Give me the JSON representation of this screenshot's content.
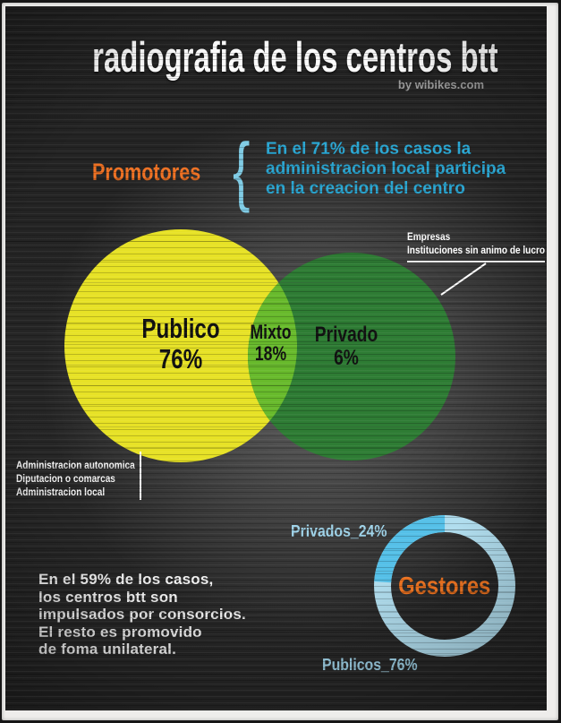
{
  "header": {
    "title": "radiografia de los centros btt",
    "byline": "by wibikes.com"
  },
  "promotores": {
    "label": "Promotores",
    "brace": "{",
    "callout": [
      "En el 71% de los casos la",
      "administracion local participa",
      "en la creacion del centro"
    ]
  },
  "venn": {
    "publico": {
      "name": "Publico",
      "value": "76%"
    },
    "mixto": {
      "name": "Mixto",
      "value": "18%"
    },
    "privado": {
      "name": "Privado",
      "value": "6%"
    },
    "privado_annotation": [
      "Empresas",
      "Instituciones sin animo de lucro"
    ],
    "publico_annotation": [
      "Administracion autonomica",
      "Diputacion o comarcas",
      "Administracion local"
    ]
  },
  "note": [
    "En el 59% de los casos,",
    "los centros btt son",
    "impulsados por consorcios.",
    "El resto es promovido",
    "de foma unilateral."
  ],
  "gestores": {
    "title": "Gestores",
    "privados_label": "Privados_24%",
    "publicos_label": "Publicos_76%"
  },
  "colors": {
    "accent_orange": "#ee7123",
    "callout_cyan": "#2aa6d2",
    "brace_blue": "#7fcbe4",
    "venn_publico": "#e7e226",
    "venn_mixto": "#68ba2c",
    "venn_privado": "#2e7c34",
    "donut_publicos": "#b0ddee",
    "donut_privados": "#55c0e8",
    "label_blue": "#9fd3e9",
    "text_white": "#fbfbfb"
  },
  "chart_data": [
    {
      "type": "venn",
      "title": "Promotores",
      "categories": [
        "Publico",
        "Mixto",
        "Privado"
      ],
      "values": [
        76,
        18,
        6
      ],
      "colors": [
        "#e7e226",
        "#68ba2c",
        "#2e7c34"
      ],
      "annotations": {
        "publico": "Administracion autonomica; Diputacion o comarcas; Administracion local",
        "privado": "Empresas; Instituciones sin animo de lucro"
      }
    },
    {
      "type": "pie",
      "subtype": "donut",
      "title": "Gestores",
      "categories": [
        "Publicos",
        "Privados"
      ],
      "values": [
        76,
        24
      ],
      "colors": [
        "#b0ddee",
        "#55c0e8"
      ],
      "legend_position": "outside"
    }
  ]
}
